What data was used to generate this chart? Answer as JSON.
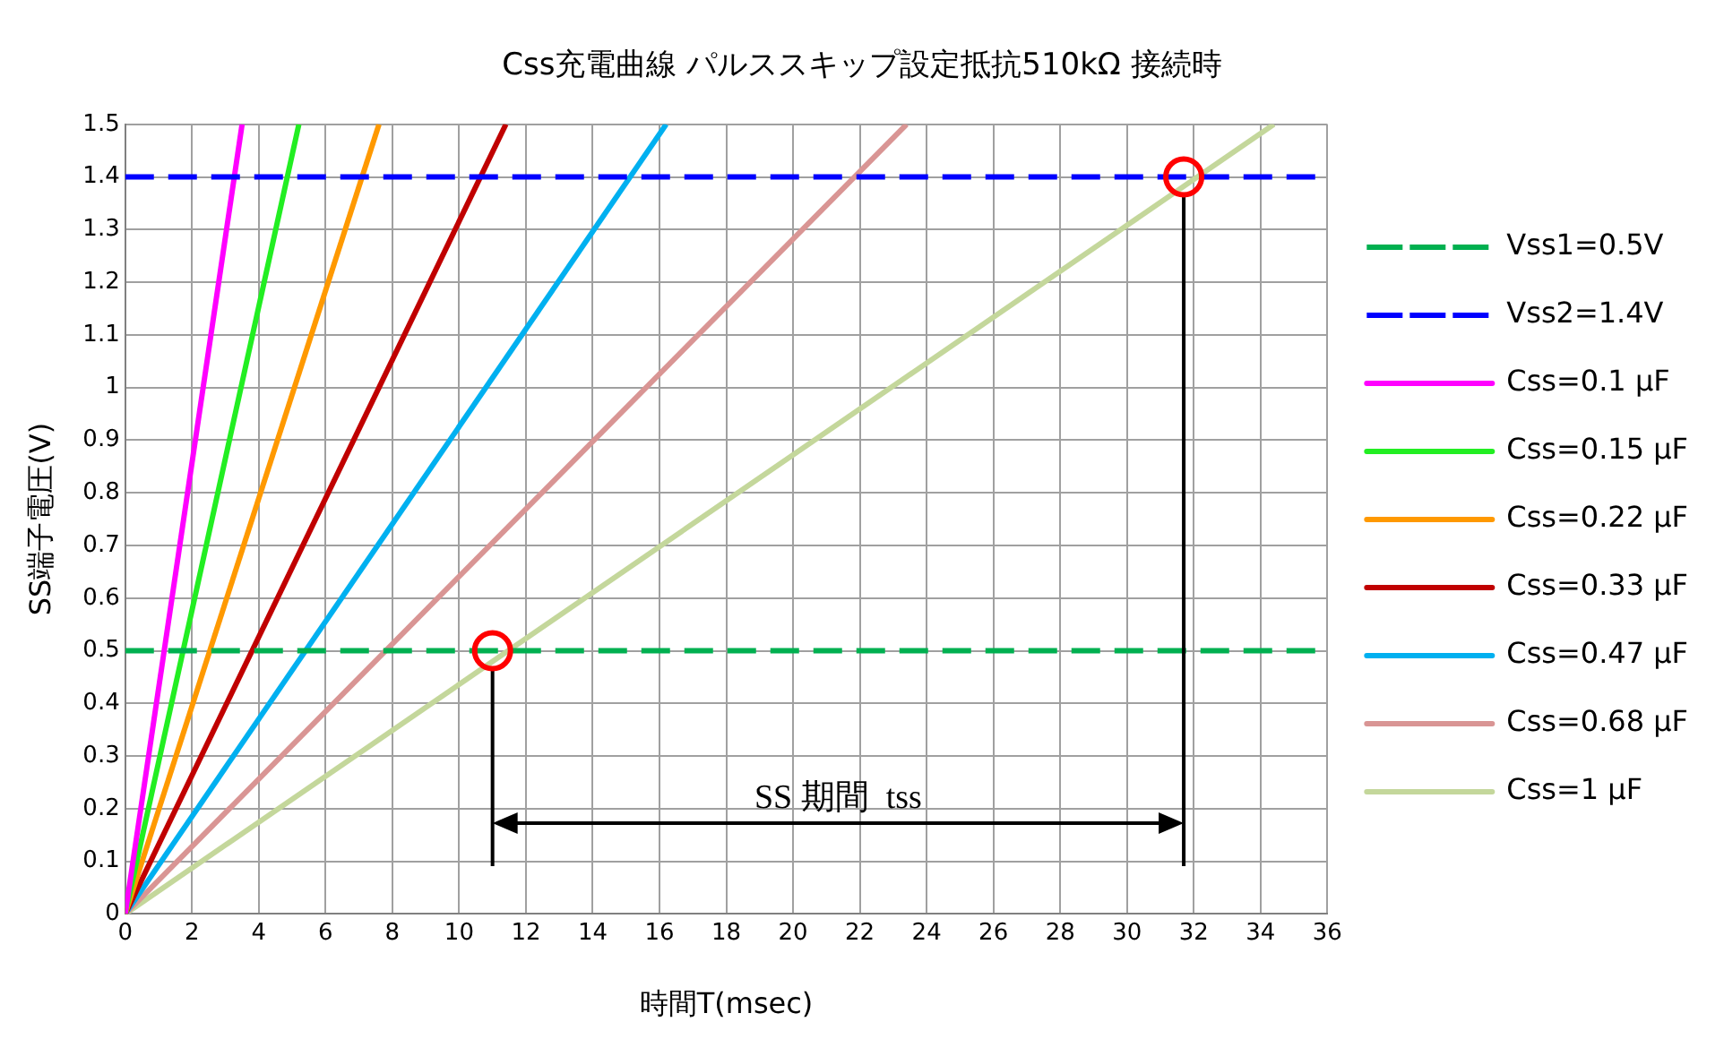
{
  "chart_data": {
    "type": "line",
    "title": "Css充電曲線 パルススキップ設定抵抗510kΩ 接続時",
    "xlabel": "時間T(msec)",
    "ylabel": "SS端子電圧(V)",
    "xlim": [
      0,
      36
    ],
    "xticks": [
      0,
      2,
      4,
      6,
      8,
      10,
      12,
      14,
      16,
      18,
      20,
      22,
      24,
      26,
      28,
      30,
      32,
      34,
      36
    ],
    "ylim": [
      0,
      1.5
    ],
    "yticks": [
      0,
      0.1,
      0.2,
      0.3,
      0.4,
      0.5,
      0.6,
      0.7,
      0.8,
      0.9,
      1,
      1.1,
      1.2,
      1.3,
      1.4,
      1.5
    ],
    "grid": true,
    "legend": "right",
    "marker": "none",
    "line_style": "solid",
    "ref_lines": [
      {
        "axis": "y",
        "value": 0.5,
        "label": "Vss1=0.5V",
        "color": "#00b050",
        "line_style": "dashed"
      },
      {
        "axis": "y",
        "value": 1.4,
        "label": "Vss2=1.4V",
        "color": "#0000ff",
        "line_style": "dashed"
      },
      {
        "axis": "x",
        "value": 11,
        "color": "#000000"
      },
      {
        "axis": "x",
        "value": 31.7,
        "color": "#000000"
      }
    ],
    "series": [
      {
        "name": "Css=0.1 μF",
        "color": "#ff00ff",
        "x": [
          0,
          3.5
        ],
        "values": [
          0,
          1.5
        ]
      },
      {
        "name": "Css=0.15 μF",
        "color": "#22ee22",
        "x": [
          0,
          5.2
        ],
        "values": [
          0,
          1.5
        ]
      },
      {
        "name": "Css=0.22 μF",
        "color": "#ff9900",
        "x": [
          0,
          7.6
        ],
        "values": [
          0,
          1.5
        ]
      },
      {
        "name": "Css=0.33 μF",
        "color": "#c00000",
        "x": [
          0,
          11.4
        ],
        "values": [
          0,
          1.5
        ]
      },
      {
        "name": "Css=0.47 μF",
        "color": "#00b0f0",
        "x": [
          0,
          16.2
        ],
        "values": [
          0,
          1.5
        ]
      },
      {
        "name": "Css=0.68 μF",
        "color": "#d99594",
        "x": [
          0,
          23.4
        ],
        "values": [
          0,
          1.5
        ]
      },
      {
        "name": "Css=1 μF",
        "color": "#c4d79b",
        "x": [
          0,
          34.4
        ],
        "values": [
          0,
          1.5
        ]
      }
    ],
    "annotations": [
      "SS 期間  tss"
    ]
  }
}
